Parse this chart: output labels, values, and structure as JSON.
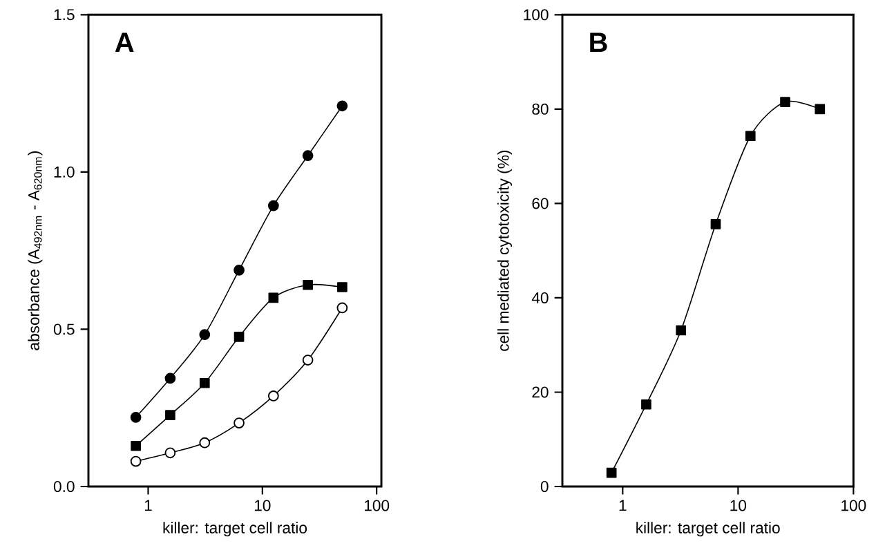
{
  "chart_data": [
    {
      "type": "line",
      "title": "A",
      "xlabel": "killer: target cell ratio",
      "ylabel": "absorbance (A$_{492nm}$ - A$_{620nm}$)",
      "log": "x",
      "grid": false,
      "xlim": [
        0.3,
        110
      ],
      "xticks": [
        1,
        10,
        100
      ],
      "ylim": [
        0,
        1.5
      ],
      "yticks": [
        {
          "value": 0,
          "label": "0.0"
        },
        0.5,
        {
          "value": 1,
          "label": "1.0"
        },
        1.5
      ],
      "x": [
        0.78,
        1.56,
        3.125,
        6.25,
        12.5,
        25,
        50
      ],
      "series": [
        {
          "color": "#000000",
          "marker": "circle",
          "values": [
            0.22,
            0.344,
            0.483,
            0.688,
            0.893,
            1.052,
            1.21
          ]
        },
        {
          "color": "#000000",
          "marker": "square",
          "values": [
            0.129,
            0.227,
            0.329,
            0.476,
            0.6,
            0.641,
            0.634
          ]
        },
        {
          "color": "#ffffff",
          "marker": "circle",
          "values": [
            0.08,
            0.107,
            0.139,
            0.202,
            0.288,
            0.402,
            0.568
          ]
        }
      ]
    },
    {
      "type": "line",
      "title": "B",
      "xlabel": "killer: target cell ratio",
      "ylabel": "cell mediated cytotoxicity (%)",
      "log": "x",
      "grid": false,
      "xlim": [
        0.3,
        100
      ],
      "xticks": [
        1,
        10,
        100
      ],
      "ylim": [
        0,
        100
      ],
      "yticks": [
        0,
        20,
        40,
        60,
        80,
        100
      ],
      "x": [
        0.8,
        1.6,
        3.2,
        6.4,
        12.8,
        25.6,
        51.2
      ],
      "series": [
        {
          "color": "#000000",
          "marker": "square",
          "values": [
            2.9,
            17.4,
            33.1,
            55.6,
            74.3,
            81.5,
            80.0
          ]
        }
      ]
    }
  ]
}
